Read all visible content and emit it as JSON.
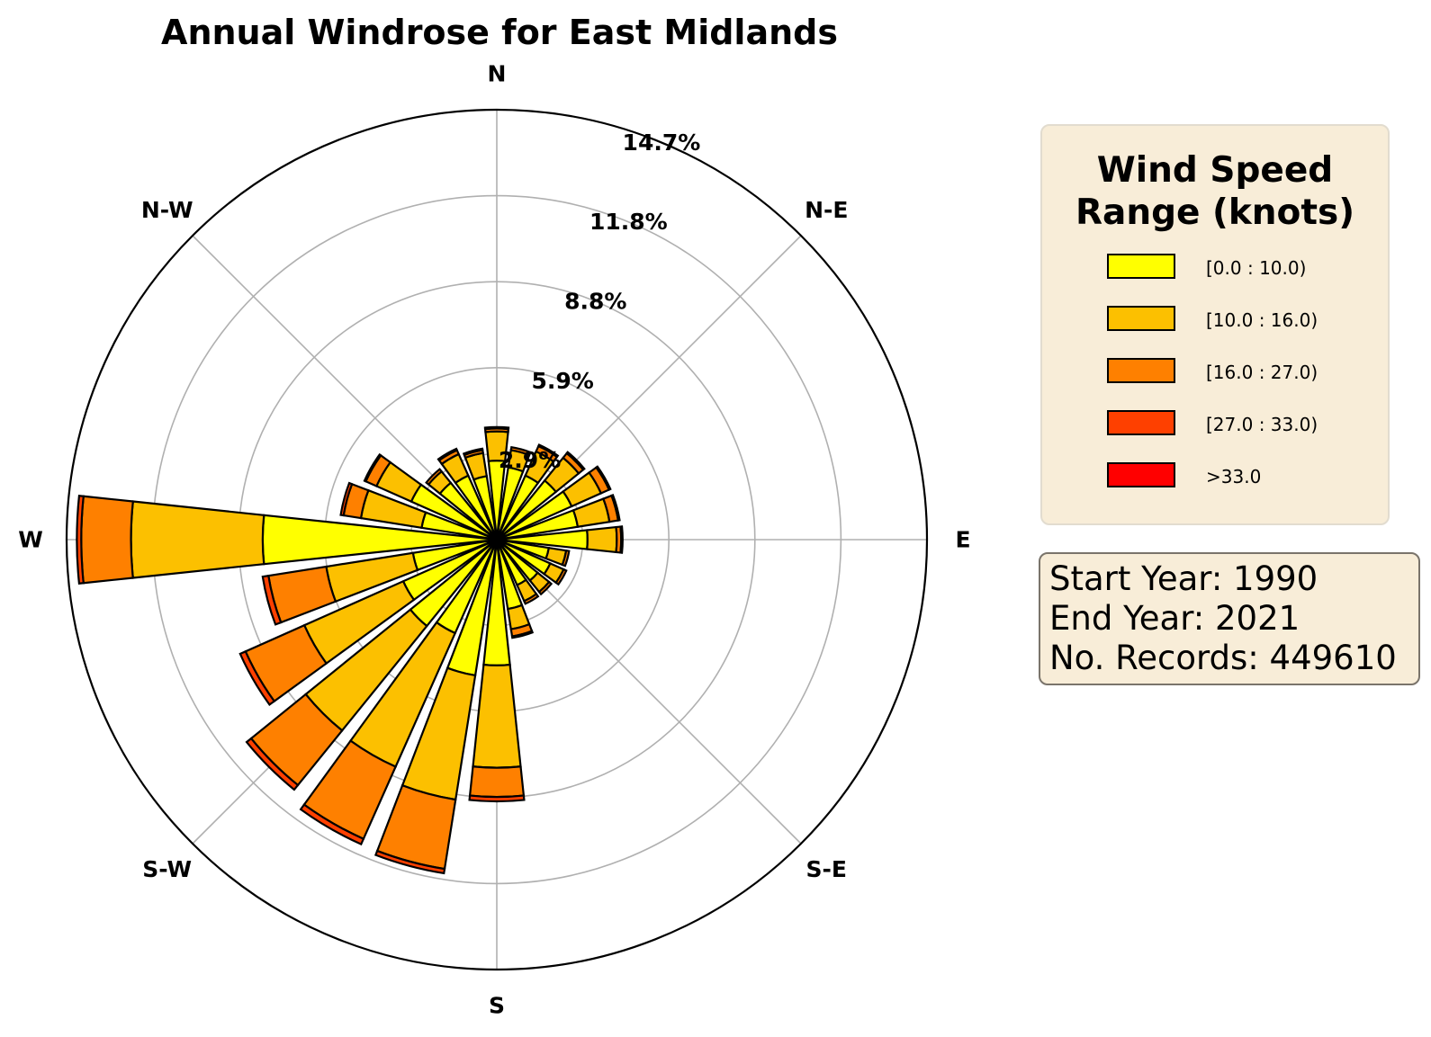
{
  "chart_data": {
    "type": "windrose",
    "title": "Annual Windrose for East Midlands",
    "directions": [
      "N",
      "N-E",
      "E",
      "S-E",
      "S",
      "S-W",
      "W",
      "N-W"
    ],
    "radial_ticks": [
      "2.9%",
      "5.9%",
      "8.8%",
      "11.8%",
      "14.7%"
    ],
    "radial_tick_values": [
      2.94,
      5.88,
      8.82,
      11.76,
      14.7
    ],
    "rmax": 14.7,
    "sector_width_deg": 12,
    "legend_title": "Wind Speed\nRange (knots)",
    "bins": [
      "[0.0 : 10.0)",
      "[10.0 : 16.0)",
      "[16.0 : 27.0)",
      "[27.0 : 33.0)",
      ">33.0"
    ],
    "colors": [
      "#ffff00",
      "#fcc000",
      "#fe8000",
      "#fe4000",
      "#ff0000"
    ],
    "sectors": [
      {
        "angle": 0,
        "values": [
          2.7,
          1.0,
          0.1,
          0.05,
          0.0
        ]
      },
      {
        "angle": 15,
        "values": [
          2.5,
          0.6,
          0.1,
          0.0,
          0.0
        ]
      },
      {
        "angle": 30,
        "values": [
          2.4,
          0.9,
          0.2,
          0.05,
          0.0
        ]
      },
      {
        "angle": 45,
        "values": [
          2.6,
          1.0,
          0.2,
          0.05,
          0.0
        ]
      },
      {
        "angle": 60,
        "values": [
          2.8,
          1.1,
          0.3,
          0.05,
          0.0
        ]
      },
      {
        "angle": 75,
        "values": [
          2.8,
          1.1,
          0.3,
          0.05,
          0.0
        ]
      },
      {
        "angle": 90,
        "values": [
          3.1,
          1.0,
          0.15,
          0.05,
          0.0
        ]
      },
      {
        "angle": 105,
        "values": [
          1.8,
          0.6,
          0.1,
          0.0,
          0.0
        ]
      },
      {
        "angle": 120,
        "values": [
          2.0,
          0.5,
          0.1,
          0.0,
          0.0
        ]
      },
      {
        "angle": 135,
        "values": [
          1.8,
          0.5,
          0.1,
          0.0,
          0.0
        ]
      },
      {
        "angle": 150,
        "values": [
          1.7,
          0.6,
          0.1,
          0.0,
          0.0
        ]
      },
      {
        "angle": 165,
        "values": [
          2.4,
          0.7,
          0.25,
          0.05,
          0.0
        ]
      },
      {
        "angle": 180,
        "values": [
          4.3,
          3.5,
          1.0,
          0.15,
          0.0
        ]
      },
      {
        "angle": 195,
        "values": [
          4.7,
          4.3,
          2.4,
          0.15,
          0.0
        ]
      },
      {
        "angle": 210,
        "values": [
          3.5,
          5.0,
          2.7,
          0.2,
          0.0
        ]
      },
      {
        "angle": 225,
        "values": [
          3.8,
          4.6,
          2.4,
          0.2,
          0.0
        ]
      },
      {
        "angle": 240,
        "values": [
          3.5,
          3.7,
          2.2,
          0.2,
          0.0
        ]
      },
      {
        "angle": 255,
        "values": [
          2.9,
          3.0,
          2.0,
          0.2,
          0.0
        ]
      },
      {
        "angle": 270,
        "values": [
          8.0,
          4.5,
          1.7,
          0.15,
          0.0
        ]
      },
      {
        "angle": 285,
        "values": [
          2.6,
          2.1,
          0.6,
          0.1,
          0.0
        ]
      },
      {
        "angle": 300,
        "values": [
          3.2,
          1.3,
          0.4,
          0.05,
          0.0
        ]
      },
      {
        "angle": 315,
        "values": [
          2.5,
          0.5,
          0.1,
          0.0,
          0.0
        ]
      },
      {
        "angle": 330,
        "values": [
          2.4,
          0.8,
          0.15,
          0.05,
          0.0
        ]
      },
      {
        "angle": 345,
        "values": [
          2.2,
          0.8,
          0.1,
          0.05,
          0.0
        ]
      }
    ]
  },
  "info": {
    "start_year": "Start Year: 1990",
    "end_year": "End Year: 2021",
    "records": "No. Records: 449610"
  }
}
